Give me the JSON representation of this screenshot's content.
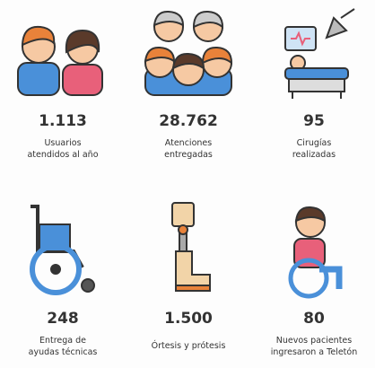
{
  "items": [
    {
      "value": "1.113",
      "label": [
        "Usuarios",
        "atendidos al año"
      ]
    },
    {
      "value": "28.762",
      "label": [
        "Atenciones",
        "entregadas"
      ]
    },
    {
      "value": "95",
      "label": [
        "Cirugías",
        "realizadas"
      ]
    },
    {
      "value": "248",
      "label": [
        "Entrega de",
        "ayudas técnicas"
      ]
    },
    {
      "value": "1.500",
      "label": [
        "Órtesis y prótesis"
      ]
    },
    {
      "value": "80",
      "label": [
        "Nuevos pacientes",
        "ingresaron a Teletón"
      ]
    }
  ]
}
